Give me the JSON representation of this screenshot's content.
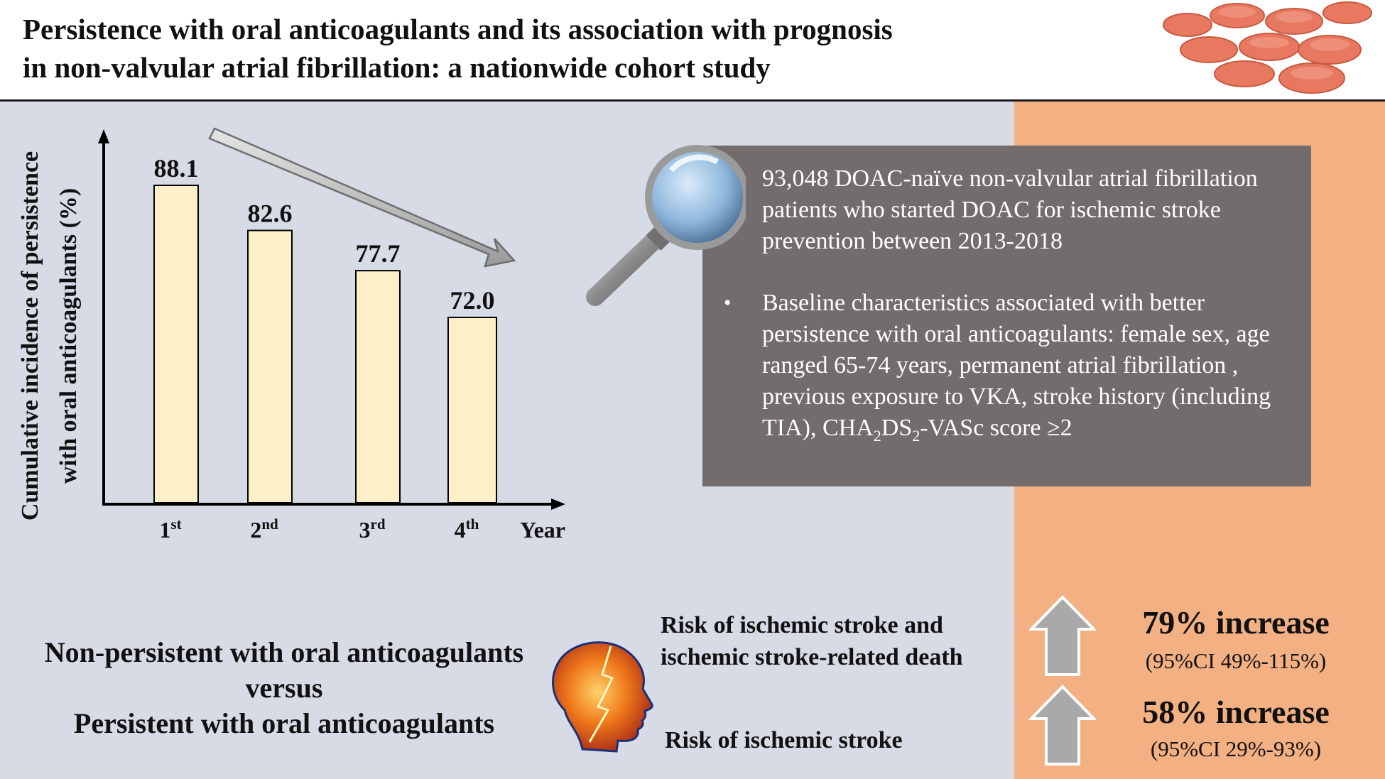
{
  "header": {
    "title_line1": "Persistence with oral anticoagulants and its association with prognosis",
    "title_line2": "in non-valvular atrial fibrillation: a nationwide cohort study"
  },
  "chart_data": {
    "type": "bar",
    "categories": [
      "1st",
      "2nd",
      "3rd",
      "4th"
    ],
    "category_parts": [
      [
        "1",
        "st"
      ],
      [
        "2",
        "nd"
      ],
      [
        "3",
        "rd"
      ],
      [
        "4",
        "th"
      ]
    ],
    "values": [
      88.1,
      82.6,
      77.7,
      72.0
    ],
    "value_labels": [
      "88.1",
      "82.6",
      "77.7",
      "72.0"
    ],
    "ylabel_line1": "Cumulative incidence of persistence",
    "ylabel_line2": "with oral anticoagulants (%)",
    "xlabel": "Year",
    "bar_color": "#fdf0c8",
    "trend": "decreasing"
  },
  "info": {
    "bullet1": "93,048 DOAC-naïve non-valvular atrial fibrillation patients who started DOAC for ischemic stroke prevention between 2013-2018",
    "bullet2_text": "Baseline characteristics associated with better persistence with oral anticoagulants: female sex, age ranged 65-74 years, permanent atrial fibrillation , previous exposure to VKA, stroke history (including TIA), ",
    "score_prefix": "CHA",
    "score_sub1": "2",
    "score_mid": "DS",
    "score_sub2": "2",
    "score_suffix": "-VASc score ≥2"
  },
  "comparison": {
    "line1": "Non-persistent with oral anticoagulants",
    "line2": "versus",
    "line3": "Persistent with oral anticoagulants"
  },
  "outcomes": [
    {
      "risk": "Risk of ischemic stroke and ischemic stroke-related death",
      "increase": "79% increase",
      "ci": "(95%CI 49%-115%)"
    },
    {
      "risk": "Risk of ischemic stroke",
      "increase": "58% increase",
      "ci": "(95%CI 29%-93%)"
    }
  ],
  "colors": {
    "left_panel": "#d6dbe6",
    "right_panel": "#f2b083",
    "info_box": "#736c6c",
    "arrow": "#a9a9a9"
  }
}
